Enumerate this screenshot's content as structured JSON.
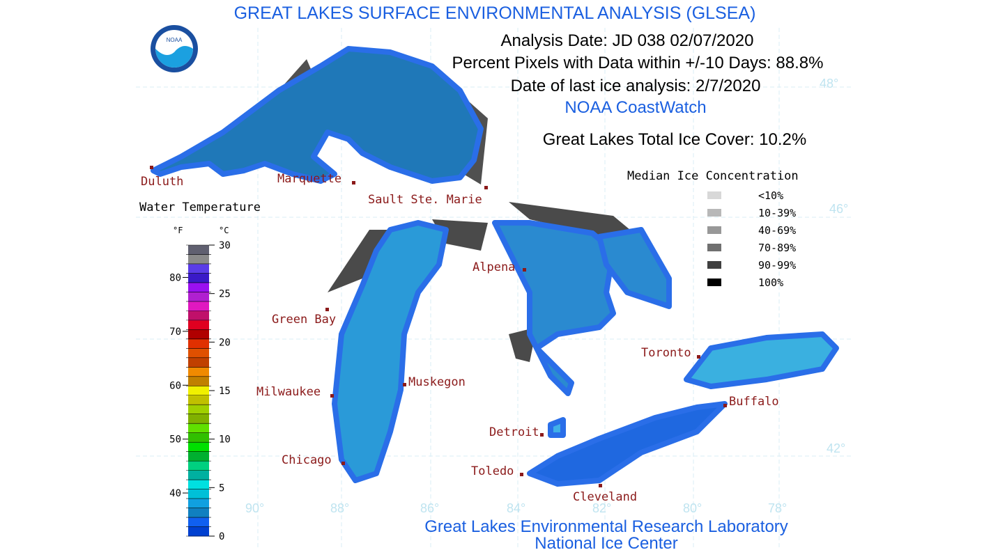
{
  "header": {
    "title": "GREAT LAKES SURFACE ENVIRONMENTAL ANALYSIS (GLSEA)",
    "analysis_date": "Analysis Date:  JD 038 02/07/2020",
    "percent_pixels": "Percent Pixels with Data within +/-10 Days:  88.8%",
    "last_ice_analysis": "Date of last ice analysis: 2/7/2020",
    "source": "NOAA CoastWatch",
    "total_ice_cover": "Great Lakes Total Ice Cover:  10.2%"
  },
  "logo": "NOAA",
  "cities": [
    "Duluth",
    "Marquette",
    "Sault Ste. Marie",
    "Alpena",
    "Green Bay",
    "Milwaukee",
    "Muskegon",
    "Chicago",
    "Detroit",
    "Toledo",
    "Cleveland",
    "Toronto",
    "Buffalo"
  ],
  "latitudes": [
    "48°",
    "46°",
    "42°"
  ],
  "longitudes": [
    "90°",
    "88°",
    "86°",
    "84°",
    "82°",
    "80°",
    "78°"
  ],
  "water_temperature": {
    "title": "Water Temperature",
    "f_unit": "°F",
    "c_unit": "°C",
    "f_lim": [
      32,
      86
    ],
    "c_lim": [
      0,
      30
    ],
    "f_ticks": [
      40,
      50,
      60,
      70,
      80
    ],
    "c_ticks": [
      0,
      5,
      10,
      15,
      20,
      25,
      30
    ],
    "colors": [
      "#0040d0",
      "#1060f0",
      "#1080c0",
      "#10a0e0",
      "#00c0d8",
      "#00e0e0",
      "#00b0a0",
      "#00d080",
      "#00b030",
      "#00e000",
      "#30c000",
      "#60e000",
      "#80b000",
      "#a0d000",
      "#c0c000",
      "#f0f000",
      "#c08000",
      "#f08a00",
      "#c04000",
      "#e05000",
      "#e03000",
      "#b00000",
      "#e00020",
      "#c0106a",
      "#e018c0",
      "#b020d0",
      "#9a10f0",
      "#3a1ac8",
      "#5a3ce8",
      "#8a8a8a",
      "#606070"
    ]
  },
  "ice_legend": {
    "title": "Median Ice Concentration",
    "items": [
      {
        "label": "<10%",
        "color": "#d8d8d8"
      },
      {
        "label": "10-39%",
        "color": "#b8b8b8"
      },
      {
        "label": "40-69%",
        "color": "#989898"
      },
      {
        "label": "70-89%",
        "color": "#707070"
      },
      {
        "label": "90-99%",
        "color": "#404040"
      },
      {
        "label": "100%",
        "color": "#000000"
      }
    ]
  },
  "footer": {
    "line1": "Great Lakes Environmental Research Laboratory",
    "line2": "National Ice Center"
  }
}
